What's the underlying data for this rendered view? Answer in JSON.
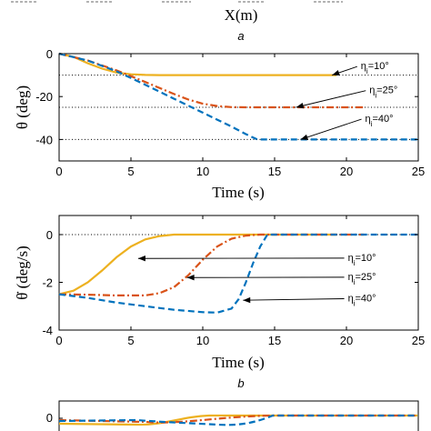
{
  "top_strip": {
    "xlabel": "X(m)",
    "panel_letter": "a"
  },
  "chart_data": [
    {
      "type": "line",
      "panel": "a",
      "xlabel": "Time (s)",
      "ylabel": "θ (deg)",
      "xlim": [
        0,
        25
      ],
      "ylim": [
        -50,
        0
      ],
      "xticks": [
        0,
        5,
        10,
        15,
        20,
        25
      ],
      "yticks": [
        0,
        -20,
        -40
      ],
      "grid": false,
      "series": [
        {
          "color": "#EDB120",
          "dash": "solid",
          "x": [
            0,
            1,
            2,
            3,
            4,
            5,
            6,
            7,
            8,
            10,
            12,
            14,
            16,
            18,
            19.3
          ],
          "y": [
            0,
            -1.5,
            -4.5,
            -7.0,
            -8.8,
            -9.6,
            -9.9,
            -10,
            -10,
            -10,
            -10,
            -10,
            -10,
            -10,
            -10
          ]
        },
        {
          "color": "#D95319",
          "dash": "dashdot",
          "x": [
            0,
            2,
            4,
            6,
            8,
            9,
            10,
            11,
            12,
            13,
            14,
            16,
            18,
            20,
            21.2
          ],
          "y": [
            0,
            -3.2,
            -7.8,
            -13.2,
            -18.8,
            -21.4,
            -23.3,
            -24.4,
            -24.9,
            -25,
            -25,
            -25,
            -25,
            -25,
            -25
          ]
        },
        {
          "color": "#0072BD",
          "dash": "dashed",
          "x": [
            0,
            2,
            4,
            6,
            8,
            10,
            12,
            13,
            13.8,
            14.5,
            16,
            18,
            20,
            22,
            24,
            25
          ],
          "y": [
            0,
            -3.2,
            -8.2,
            -14.5,
            -21.0,
            -27.5,
            -34.0,
            -37.5,
            -40,
            -40,
            -40,
            -40,
            -40,
            -40,
            -40,
            -40
          ]
        }
      ],
      "reference_lines": [
        -10,
        -25,
        -40
      ],
      "annotations": [
        {
          "text_main": "η",
          "text_sub": "i",
          "text_rest": "=10°",
          "at": [
            19,
            -10
          ],
          "label_at": [
            21.0,
            -7.3
          ]
        },
        {
          "text_main": "η",
          "text_sub": "i",
          "text_rest": "=25°",
          "at": [
            16.5,
            -25
          ],
          "label_at": [
            21.6,
            -18.5
          ]
        },
        {
          "text_main": "η",
          "text_sub": "i",
          "text_rest": "=40°",
          "at": [
            16.8,
            -40
          ],
          "label_at": [
            21.3,
            -31.8
          ]
        }
      ]
    },
    {
      "type": "line",
      "panel": "b",
      "xlabel": "Time (s)",
      "ylabel": "θ̇ (deg/s)",
      "xlim": [
        0,
        25
      ],
      "ylim": [
        -4,
        0.8
      ],
      "xticks": [
        0,
        5,
        10,
        15,
        20,
        25
      ],
      "yticks": [
        0,
        -2,
        -4
      ],
      "grid": false,
      "series": [
        {
          "color": "#EDB120",
          "dash": "solid",
          "x": [
            0,
            1,
            2,
            3,
            4,
            5,
            6,
            7,
            8,
            10,
            12,
            14,
            16,
            18,
            19.3
          ],
          "y": [
            -2.5,
            -2.35,
            -2.0,
            -1.5,
            -0.95,
            -0.5,
            -0.2,
            -0.06,
            0,
            0,
            0,
            0,
            0,
            0,
            0
          ]
        },
        {
          "color": "#D95319",
          "dash": "dashdot",
          "x": [
            0,
            2,
            4,
            6,
            7,
            8,
            9,
            10,
            11,
            12,
            13,
            14,
            16,
            18,
            20,
            21.2
          ],
          "y": [
            -2.5,
            -2.52,
            -2.55,
            -2.55,
            -2.45,
            -2.2,
            -1.7,
            -1.05,
            -0.5,
            -0.17,
            -0.04,
            0,
            0,
            0,
            0,
            0
          ]
        },
        {
          "color": "#0072BD",
          "dash": "dashed",
          "x": [
            0,
            2,
            4,
            6,
            8,
            10,
            11,
            12,
            12.5,
            13,
            13.5,
            14,
            14.5,
            16,
            18,
            20,
            22,
            24,
            25
          ],
          "y": [
            -2.5,
            -2.65,
            -2.85,
            -3.0,
            -3.15,
            -3.25,
            -3.27,
            -3.1,
            -2.7,
            -2.0,
            -1.2,
            -0.5,
            0,
            0,
            0,
            0,
            0,
            0,
            0
          ]
        }
      ],
      "reference_lines": [
        0
      ],
      "annotations": [
        {
          "text_main": "η",
          "text_sub": "i",
          "text_rest": "=10°",
          "at": [
            5.5,
            -1.0
          ],
          "label_at": [
            20.1,
            -1.1
          ]
        },
        {
          "text_main": "η",
          "text_sub": "i",
          "text_rest": "=25°",
          "at": [
            8.9,
            -1.8
          ],
          "label_at": [
            20.1,
            -1.9
          ]
        },
        {
          "text_main": "η",
          "text_sub": "i",
          "text_rest": "=40°",
          "at": [
            12.8,
            -2.75
          ],
          "label_at": [
            20.1,
            -2.8
          ]
        }
      ]
    }
  ],
  "bottom_partial": {
    "ytick": "0",
    "series_colors": [
      "#EDB120",
      "#D95319",
      "#0072BD"
    ]
  }
}
